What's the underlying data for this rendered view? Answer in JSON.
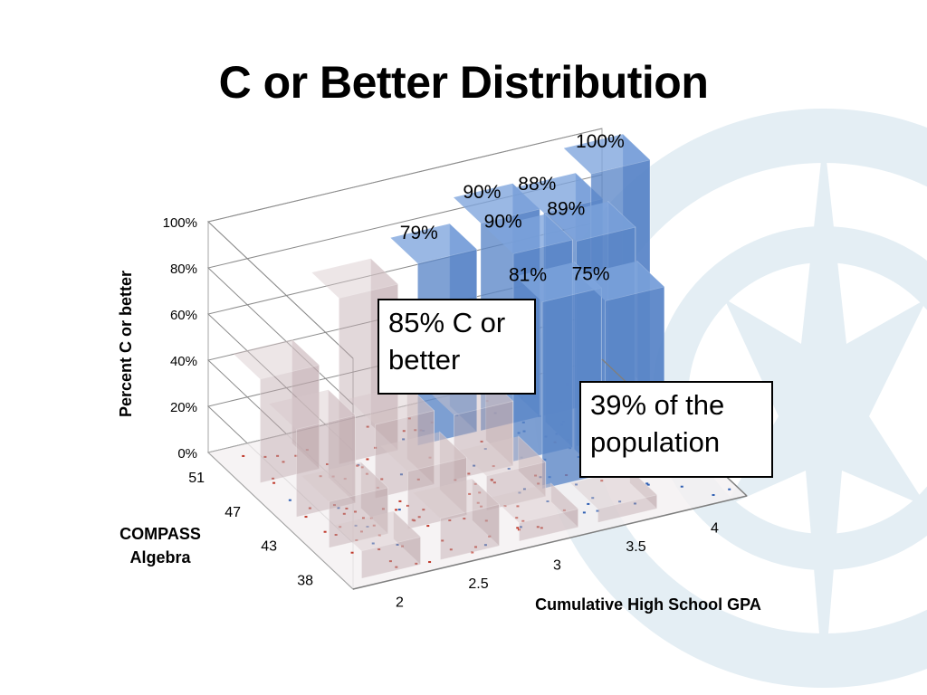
{
  "slide": {
    "title": "C or Better Distribution",
    "callouts": [
      "85% C or better",
      "39% of the population"
    ],
    "colors": {
      "background_logo": "#e4eef4",
      "high_bars": "#5b86c8",
      "low_bars": "#bfa8ac",
      "dots_red": "#c0392b",
      "dots_blue": "#2f5fb3"
    }
  },
  "chart_data": {
    "type": "bar",
    "subtype": "3d-column",
    "title": "",
    "ylabel": "Percent C or better",
    "xlabel": "Cumulative High School GPA",
    "zlabel": "COMPASS\nAlgebra",
    "ylim": [
      0,
      100
    ],
    "yticks": [
      "0%",
      "20%",
      "40%",
      "60%",
      "80%",
      "100%"
    ],
    "gpa_ticks": [
      "2",
      "2.5",
      "3",
      "3.5",
      "4"
    ],
    "compass_ticks": [
      "51",
      "47",
      "43",
      "38"
    ],
    "grid": true,
    "data_labels": [
      {
        "compass": "51",
        "gpa": "2.5",
        "value": 79,
        "label": "79%"
      },
      {
        "compass": "51",
        "gpa": "3",
        "value": 90,
        "label": "90%"
      },
      {
        "compass": "51",
        "gpa": "3.5",
        "value": 88,
        "label": "88%"
      },
      {
        "compass": "51",
        "gpa": "4",
        "value": 100,
        "label": "100%"
      },
      {
        "compass": "47",
        "gpa": "3",
        "value": 90,
        "label": "90%"
      },
      {
        "compass": "47",
        "gpa": "3.5",
        "value": 89,
        "label": "89%"
      },
      {
        "compass": "47",
        "gpa": "3",
        "value": 81,
        "label": "81%"
      },
      {
        "compass": "43",
        "gpa": "3.5",
        "value": 75,
        "label": "75%"
      }
    ]
  }
}
